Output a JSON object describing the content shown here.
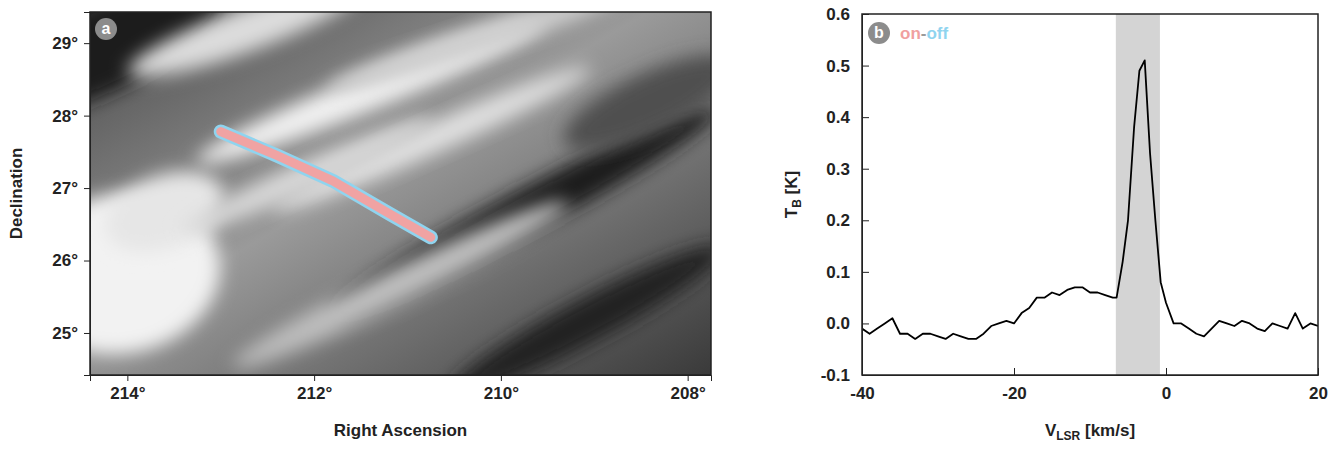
{
  "chart_data": [
    {
      "type": "map",
      "panel": "a",
      "xlabel": "Right Ascension",
      "ylabel": "Declination",
      "xlim": [
        214.4,
        207.75
      ],
      "ylim": [
        24.42,
        29.43
      ],
      "xticks": [
        {
          "value": 214,
          "label": "214°"
        },
        {
          "value": 212,
          "label": "212°"
        },
        {
          "value": 210,
          "label": "210°"
        },
        {
          "value": 208,
          "label": "208°"
        }
      ],
      "yticks": [
        {
          "value": 25,
          "label": "25°"
        },
        {
          "value": 26,
          "label": "26°"
        },
        {
          "value": 27,
          "label": "27°"
        },
        {
          "value": 28,
          "label": "28°"
        },
        {
          "value": 29,
          "label": "29°"
        }
      ],
      "x": [
        213.0,
        212.4,
        211.8,
        211.2,
        210.75
      ],
      "series": [
        {
          "color": "#8fd4ef",
          "values": [
            27.78,
            27.45,
            27.1,
            26.65,
            26.32
          ]
        },
        {
          "color": "#f0a3a3",
          "values": [
            27.78,
            27.45,
            27.1,
            26.65,
            26.32
          ]
        }
      ]
    },
    {
      "type": "line",
      "panel": "b",
      "annotation": [
        {
          "text": "on",
          "color": "#f0a0a0"
        },
        {
          "text": "-",
          "color": "#9a9a9a"
        },
        {
          "text": "off",
          "color": "#8fd4ef"
        }
      ],
      "xlabel": [
        "V",
        "LSR",
        " [km/s]"
      ],
      "ylabel": [
        "T",
        "B",
        " [K]"
      ],
      "xlim": [
        -40,
        20
      ],
      "ylim": [
        -0.1,
        0.6
      ],
      "xticks": [
        -40,
        -20,
        0,
        20
      ],
      "yticks": [
        -0.1,
        {
          "value": 0,
          "label": "0.0"
        },
        0.1,
        0.2,
        0.3,
        0.4,
        0.5,
        0.6
      ],
      "shaded_range": [
        -6.6,
        -0.8
      ],
      "x": [
        -40,
        -39,
        -38,
        -37,
        -36,
        -35,
        -34,
        -33,
        -32,
        -31,
        -30,
        -29,
        -28,
        -27,
        -26,
        -25,
        -24,
        -23,
        -22,
        -21,
        -20,
        -19,
        -18,
        -17,
        -16,
        -15,
        -14,
        -13,
        -12,
        -11,
        -10,
        -9,
        -8,
        -7,
        -6.5,
        -5.7,
        -5,
        -4.2,
        -3.5,
        -2.8,
        -2.1,
        -1.4,
        -0.7,
        0,
        1,
        2,
        3,
        4,
        5,
        6,
        7,
        8,
        9,
        10,
        11,
        12,
        13,
        14,
        15,
        16,
        17,
        18,
        19,
        20
      ],
      "values": [
        -0.01,
        -0.02,
        -0.01,
        0.0,
        0.01,
        -0.02,
        -0.02,
        -0.03,
        -0.02,
        -0.02,
        -0.025,
        -0.03,
        -0.02,
        -0.025,
        -0.03,
        -0.03,
        -0.02,
        -0.005,
        0.0,
        0.005,
        0.0,
        0.02,
        0.03,
        0.05,
        0.05,
        0.06,
        0.055,
        0.065,
        0.07,
        0.07,
        0.06,
        0.06,
        0.055,
        0.05,
        0.05,
        0.12,
        0.2,
        0.38,
        0.49,
        0.51,
        0.33,
        0.2,
        0.08,
        0.04,
        0.0,
        0.0,
        -0.01,
        -0.02,
        -0.025,
        -0.01,
        0.005,
        0.0,
        -0.005,
        0.005,
        0.0,
        -0.01,
        -0.015,
        0.0,
        -0.005,
        -0.01,
        0.02,
        -0.01,
        0.0,
        -0.005
      ],
      "color": "#000000"
    }
  ]
}
